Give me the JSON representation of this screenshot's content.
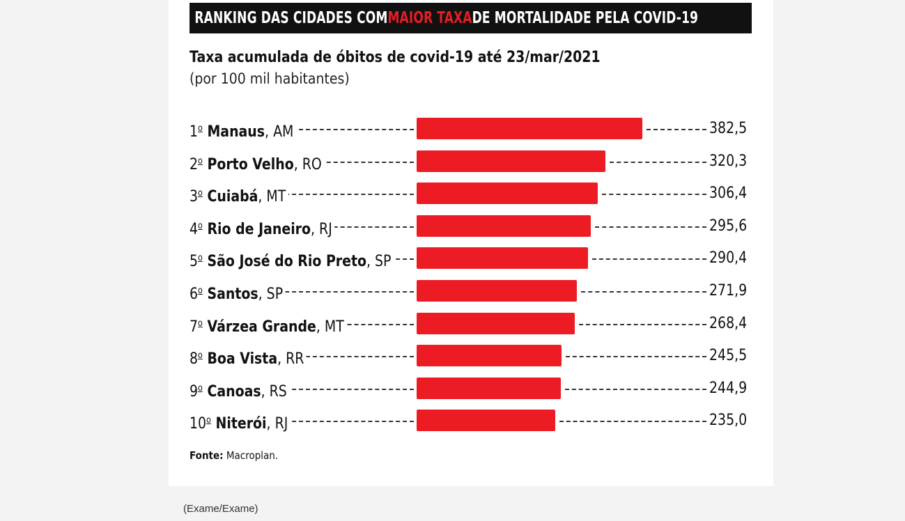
{
  "header": {
    "title_pre": "RANKING DAS CIDADES COM ",
    "title_highlight": "MAIOR TAXA",
    "title_post": " DE MORTALIDADE PELA COVID-19",
    "highlight_color": "#e31e24"
  },
  "chart_data": {
    "type": "bar",
    "orientation": "horizontal",
    "title": "RANKING DAS CIDADES COM MAIOR TAXA DE MORTALIDADE PELA COVID-19",
    "subtitle": "Taxa acumulada de óbitos de covid-19 até 23/mar/2021",
    "unit": "(por 100 mil habitantes)",
    "bar_color": "#ed1c24",
    "rows": [
      {
        "rank": "1",
        "city": "Manaus",
        "state": ", AM",
        "value": 382.5,
        "value_label": "382,5"
      },
      {
        "rank": "2",
        "city": "Porto Velho",
        "state": ", RO",
        "value": 320.3,
        "value_label": "320,3"
      },
      {
        "rank": "3",
        "city": "Cuiabá",
        "state": ", MT",
        "value": 306.4,
        "value_label": "306,4"
      },
      {
        "rank": "4",
        "city": "Rio de Janeiro",
        "state": ", RJ",
        "value": 295.6,
        "value_label": "295,6"
      },
      {
        "rank": "5",
        "city": "São José do Rio Preto",
        "state": ", SP",
        "value": 290.4,
        "value_label": "290,4"
      },
      {
        "rank": "6",
        "city": "Santos",
        "state": ", SP",
        "value": 271.9,
        "value_label": "271,9"
      },
      {
        "rank": "7",
        "city": "Várzea Grande",
        "state": ", MT",
        "value": 268.4,
        "value_label": "268,4"
      },
      {
        "rank": "8",
        "city": "Boa Vista",
        "state": ", RR",
        "value": 245.5,
        "value_label": "245,5"
      },
      {
        "rank": "9",
        "city": "Canoas",
        "state": ", RS",
        "value": 244.9,
        "value_label": "244,9"
      },
      {
        "rank": "10",
        "city": "Niterói",
        "state": ", RJ",
        "value": 235.0,
        "value_label": "235,0"
      }
    ],
    "source_label": "Fonte:",
    "source_text": " Macroplan."
  },
  "caption": "(Exame/Exame)"
}
